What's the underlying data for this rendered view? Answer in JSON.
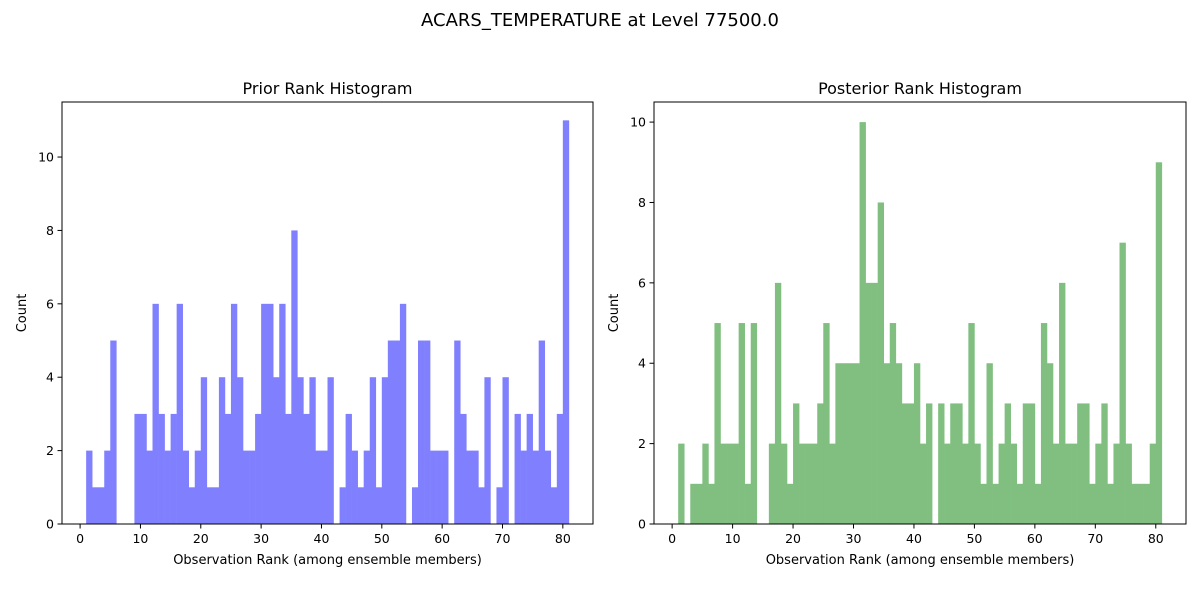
{
  "figure": {
    "suptitle": "ACARS_TEMPERATURE at Level 77500.0"
  },
  "chart_data": [
    {
      "type": "bar",
      "title": "Prior Rank Histogram",
      "xlabel": "Observation Rank (among ensemble members)",
      "ylabel": "Count",
      "color": "#8080ff",
      "xlim": [
        -3,
        85
      ],
      "ylim": [
        0,
        11.5
      ],
      "xticks": [
        0,
        10,
        20,
        30,
        40,
        50,
        60,
        70,
        80
      ],
      "yticks": [
        0,
        2,
        4,
        6,
        8,
        10
      ],
      "bin_start": 1,
      "bin_width": 1,
      "values": [
        2,
        1,
        1,
        2,
        5,
        0,
        0,
        0,
        3,
        3,
        2,
        6,
        3,
        2,
        3,
        6,
        2,
        1,
        2,
        4,
        1,
        1,
        4,
        3,
        6,
        4,
        2,
        2,
        3,
        6,
        6,
        4,
        6,
        3,
        8,
        4,
        3,
        4,
        2,
        2,
        4,
        0,
        1,
        3,
        2,
        1,
        2,
        4,
        1,
        4,
        5,
        5,
        6,
        0,
        1,
        5,
        5,
        2,
        2,
        2,
        0,
        5,
        3,
        2,
        2,
        1,
        4,
        0,
        1,
        4,
        0,
        3,
        2,
        3,
        2,
        5,
        2,
        1,
        3,
        11
      ]
    },
    {
      "type": "bar",
      "title": "Posterior Rank Histogram",
      "xlabel": "Observation Rank (among ensemble members)",
      "ylabel": "Count",
      "color": "#80bf80",
      "xlim": [
        -3,
        85
      ],
      "ylim": [
        0,
        10.5
      ],
      "xticks": [
        0,
        10,
        20,
        30,
        40,
        50,
        60,
        70,
        80
      ],
      "yticks": [
        0,
        2,
        4,
        6,
        8,
        10
      ],
      "bin_start": 1,
      "bin_width": 1,
      "values": [
        2,
        0,
        1,
        1,
        2,
        1,
        5,
        2,
        2,
        2,
        5,
        1,
        5,
        0,
        0,
        2,
        6,
        2,
        1,
        3,
        2,
        2,
        2,
        3,
        5,
        2,
        4,
        4,
        4,
        4,
        10,
        6,
        6,
        8,
        4,
        5,
        4,
        3,
        3,
        4,
        2,
        3,
        0,
        3,
        2,
        3,
        3,
        2,
        5,
        2,
        1,
        4,
        1,
        2,
        3,
        2,
        1,
        3,
        3,
        1,
        5,
        4,
        2,
        6,
        2,
        2,
        3,
        3,
        1,
        2,
        3,
        1,
        2,
        7,
        2,
        1,
        1,
        1,
        2,
        9
      ]
    }
  ]
}
